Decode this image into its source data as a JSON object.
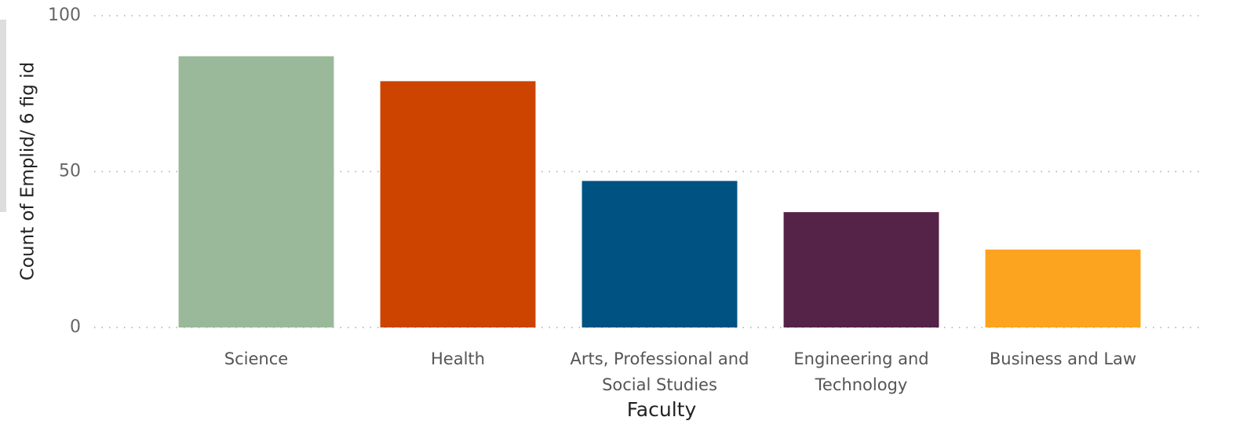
{
  "chart_data": {
    "type": "bar",
    "x_label": "Faculty",
    "y_label": "Count of Emplid/ 6 fig id",
    "categories": [
      "Science",
      "Health",
      "Arts, Professional and Social Studies",
      "Engineering and Technology",
      "Business and Law"
    ],
    "values": [
      87,
      79,
      47,
      37,
      25
    ],
    "colors": [
      "#9ab99a",
      "#cc4400",
      "#005283",
      "#552248",
      "#fca31f"
    ],
    "ylim": [
      0,
      100
    ],
    "yticks": [
      0,
      50,
      100
    ],
    "grid": true
  }
}
